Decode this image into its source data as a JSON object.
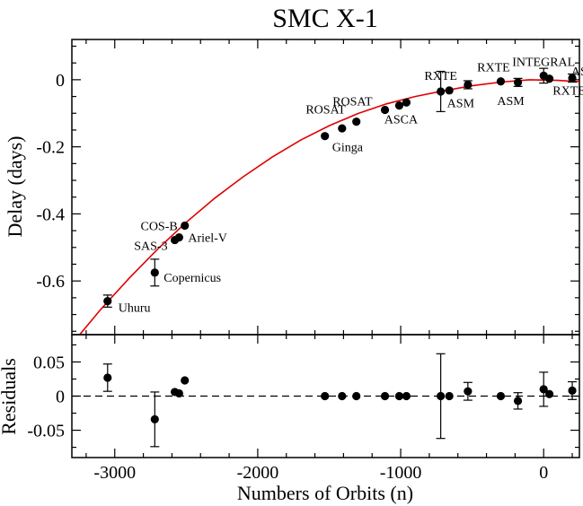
{
  "chart_data": [
    {
      "type": "scatter",
      "panel": "main",
      "title": "SMC X-1",
      "ylabel": "Delay (days)",
      "xlim": [
        -3300,
        250
      ],
      "ylim": [
        -0.76,
        0.12
      ],
      "y_ticks": [
        0,
        -0.2,
        -0.4,
        -0.6
      ],
      "y_tick_labels": [
        "0",
        "-0.2",
        "-0.4",
        "-0.6"
      ],
      "grid": false,
      "fit_curve": {
        "color": "#e00000",
        "x": [
          -3300,
          -3100,
          -2900,
          -2700,
          -2500,
          -2300,
          -2100,
          -1900,
          -1700,
          -1500,
          -1300,
          -1100,
          -900,
          -700,
          -500,
          -300,
          -100,
          100,
          250
        ],
        "y": [
          -0.788,
          -0.686,
          -0.592,
          -0.505,
          -0.425,
          -0.353,
          -0.289,
          -0.231,
          -0.18,
          -0.137,
          -0.101,
          -0.072,
          -0.05,
          -0.033,
          -0.018,
          -0.007,
          0.0,
          -0.002,
          -0.006
        ]
      },
      "points": [
        {
          "x": -3050,
          "y": -0.66,
          "err": 0.018,
          "label": "Uhuru"
        },
        {
          "x": -2720,
          "y": -0.575,
          "err": 0.04,
          "label": "Copernicus"
        },
        {
          "x": -2580,
          "y": -0.478,
          "err": 0,
          "label": "SAS-3"
        },
        {
          "x": -2550,
          "y": -0.47,
          "err": 0,
          "label": "Ariel-V"
        },
        {
          "x": -2510,
          "y": -0.435,
          "err": 0,
          "label": "COS-B"
        },
        {
          "x": -1530,
          "y": -0.168,
          "err": 0,
          "label": "Ginga"
        },
        {
          "x": -1410,
          "y": -0.145,
          "err": 0,
          "label": ""
        },
        {
          "x": -1310,
          "y": -0.125,
          "err": 0,
          "label": "ROSAT"
        },
        {
          "x": -1110,
          "y": -0.09,
          "err": 0,
          "label": "ROSAT"
        },
        {
          "x": -1010,
          "y": -0.077,
          "err": 0,
          "label": ""
        },
        {
          "x": -960,
          "y": -0.068,
          "err": 0,
          "label": "ASCA"
        },
        {
          "x": -720,
          "y": -0.035,
          "err": 0.06,
          "label": "RXTE"
        },
        {
          "x": -660,
          "y": -0.032,
          "err": 0,
          "label": ""
        },
        {
          "x": -530,
          "y": -0.015,
          "err": 0.012,
          "label": "ASM"
        },
        {
          "x": -300,
          "y": -0.005,
          "err": 0,
          "label": "RXTE"
        },
        {
          "x": -180,
          "y": -0.008,
          "err": 0.012,
          "label": "ASM"
        },
        {
          "x": 0,
          "y": 0.012,
          "err": 0.022,
          "label": "INTEGRAL"
        },
        {
          "x": 40,
          "y": 0.003,
          "err": 0,
          "label": "RXTE"
        },
        {
          "x": 200,
          "y": 0.005,
          "err": 0.012,
          "label": "ASM"
        }
      ]
    },
    {
      "type": "scatter",
      "panel": "residuals",
      "xlabel": "Numbers of Orbits (n)",
      "ylabel": "Residuals",
      "xlim": [
        -3300,
        250
      ],
      "ylim": [
        -0.09,
        0.09
      ],
      "x_ticks": [
        -3000,
        -2000,
        -1000,
        0
      ],
      "x_tick_labels": [
        "-3000",
        "-2000",
        "-1000",
        "0"
      ],
      "y_ticks": [
        0.05,
        0,
        -0.05
      ],
      "y_tick_labels": [
        "0.05",
        "0",
        "-0.05"
      ],
      "zero_line": "dashed",
      "points": [
        {
          "x": -3050,
          "y": 0.027,
          "err": 0.02
        },
        {
          "x": -2720,
          "y": -0.034,
          "err": 0.04
        },
        {
          "x": -2580,
          "y": 0.006,
          "err": 0
        },
        {
          "x": -2550,
          "y": 0.004,
          "err": 0
        },
        {
          "x": -2510,
          "y": 0.023,
          "err": 0
        },
        {
          "x": -1530,
          "y": 0.0,
          "err": 0
        },
        {
          "x": -1410,
          "y": 0.0,
          "err": 0
        },
        {
          "x": -1310,
          "y": 0.0,
          "err": 0
        },
        {
          "x": -1110,
          "y": 0.0,
          "err": 0
        },
        {
          "x": -1010,
          "y": 0.0,
          "err": 0
        },
        {
          "x": -960,
          "y": 0.0,
          "err": 0
        },
        {
          "x": -720,
          "y": 0.0,
          "err": 0.062
        },
        {
          "x": -660,
          "y": 0.0,
          "err": 0
        },
        {
          "x": -530,
          "y": 0.007,
          "err": 0.013
        },
        {
          "x": -300,
          "y": 0.0,
          "err": 0
        },
        {
          "x": -180,
          "y": -0.007,
          "err": 0.012
        },
        {
          "x": 0,
          "y": 0.01,
          "err": 0.025
        },
        {
          "x": 40,
          "y": 0.003,
          "err": 0
        },
        {
          "x": 200,
          "y": 0.008,
          "err": 0.013
        }
      ]
    }
  ]
}
